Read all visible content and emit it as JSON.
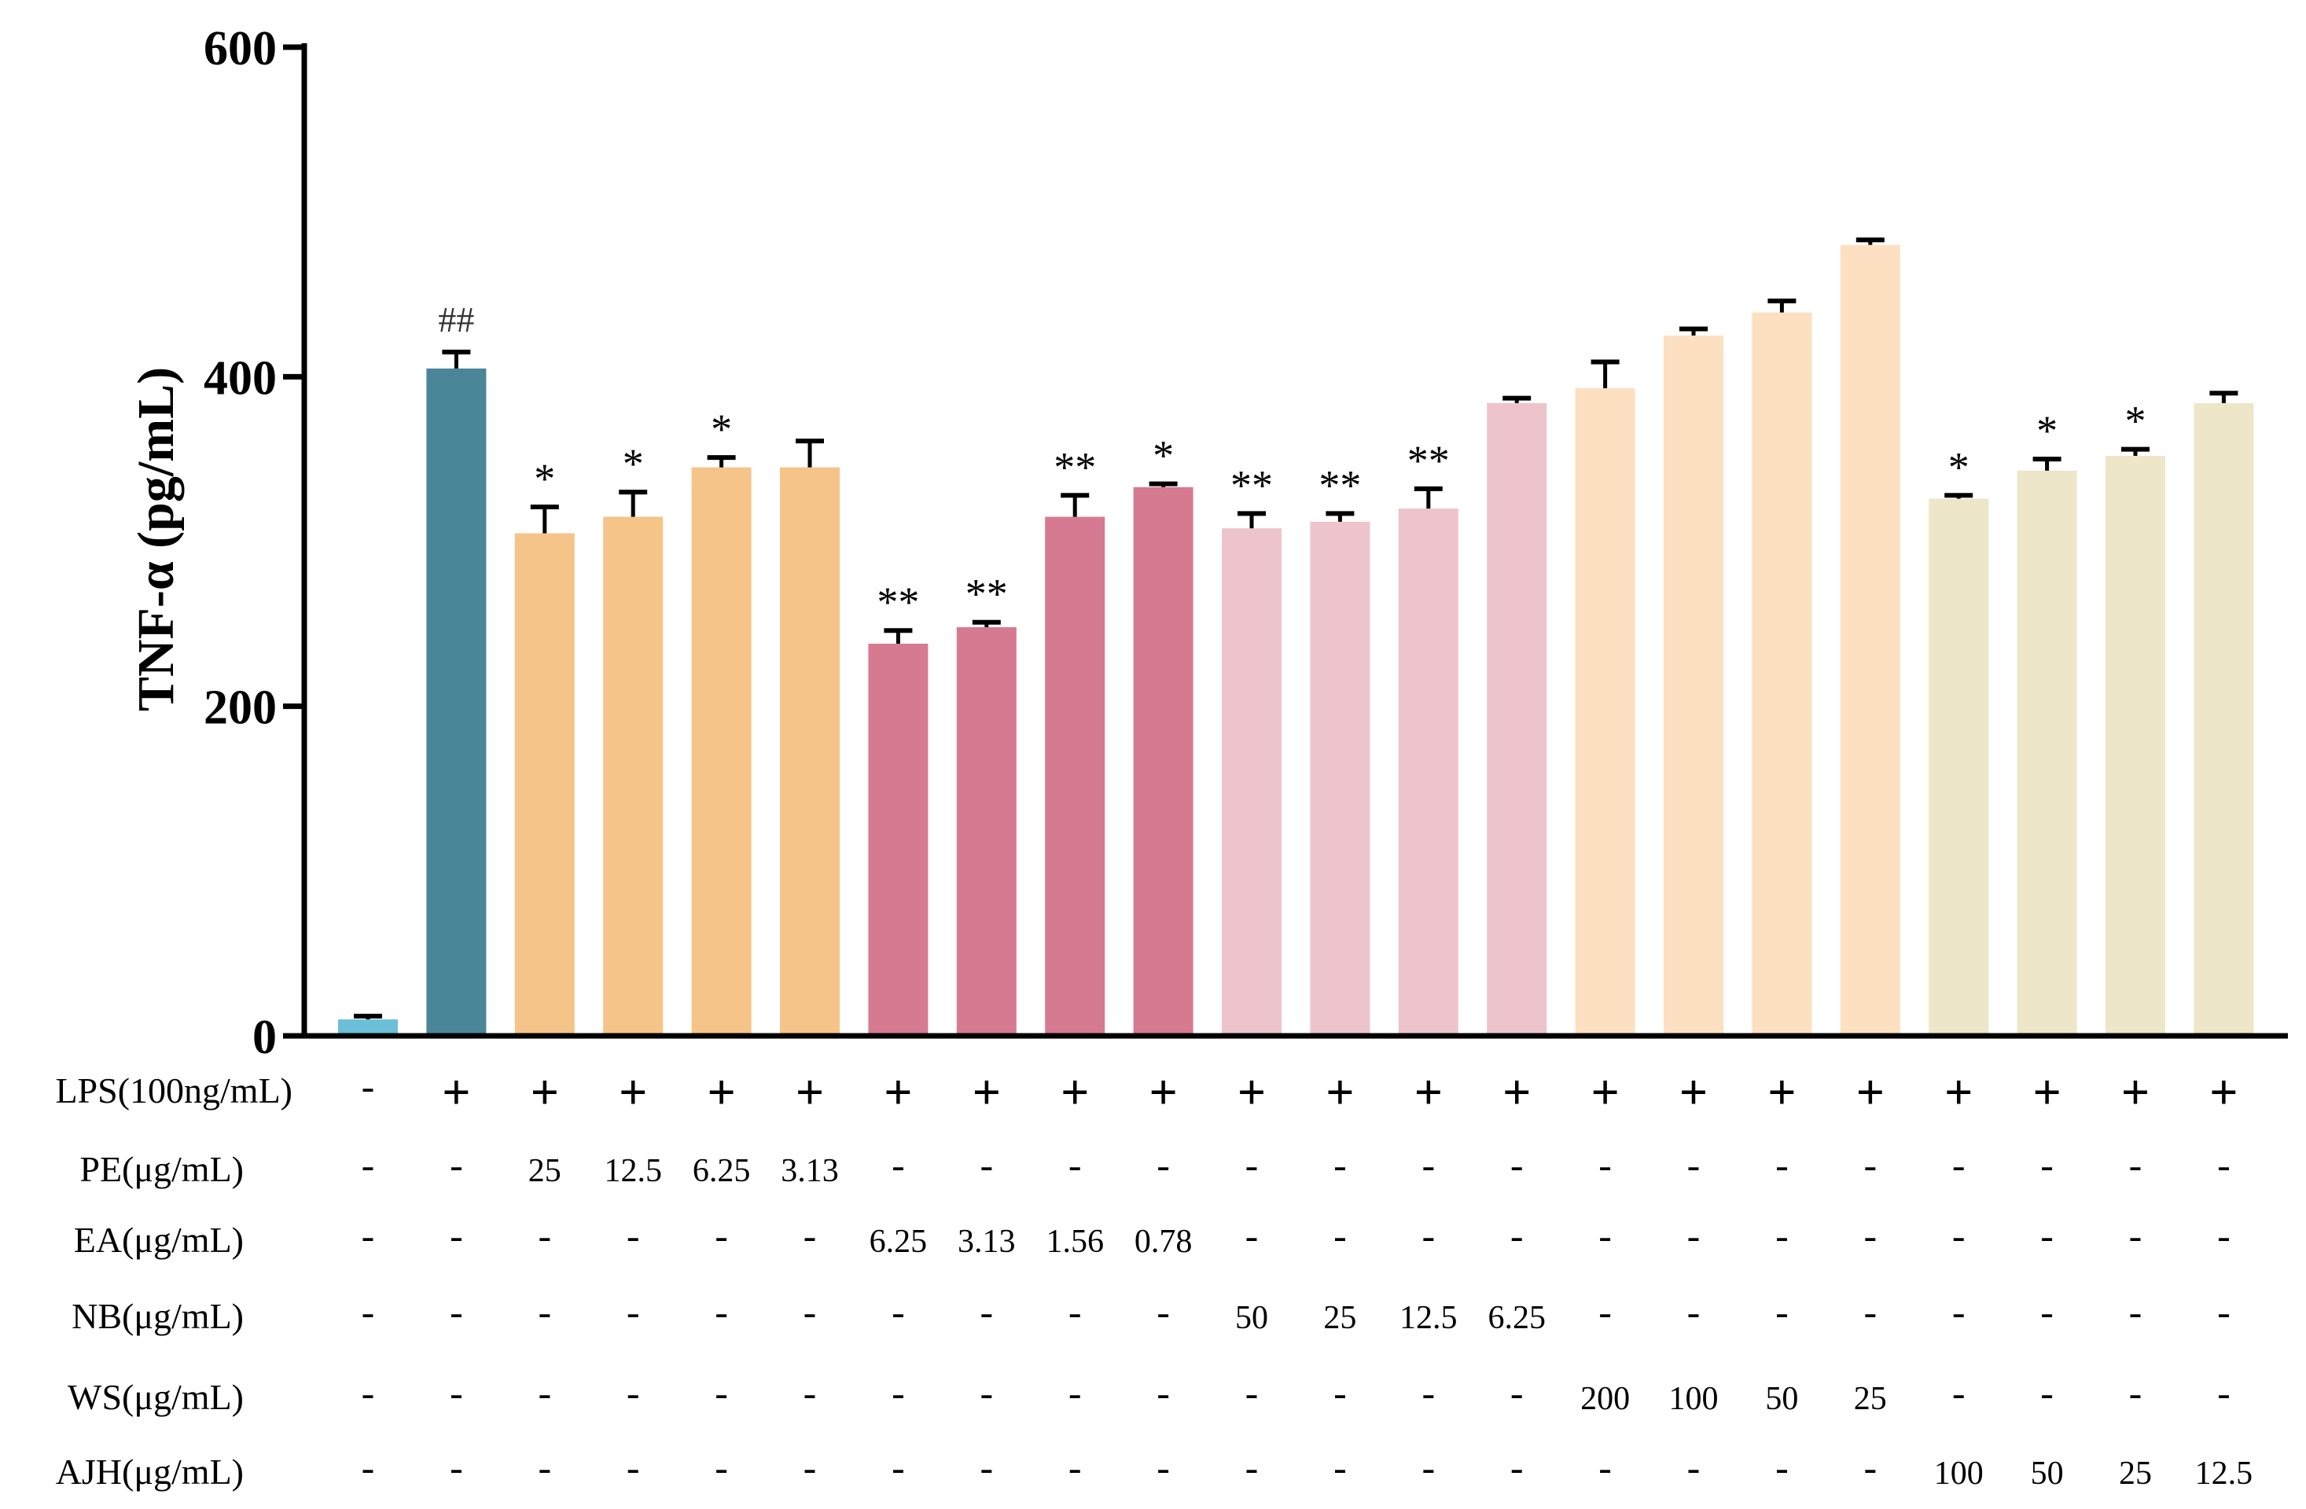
{
  "chart_data": {
    "type": "bar",
    "ylabel": "TNF-α (pg/mL)",
    "xlabel": "",
    "title": "",
    "ylim": [
      0,
      600
    ],
    "yticks": [
      "0",
      "200",
      "400",
      "600"
    ],
    "grid": false,
    "legend": "none",
    "values": [
      10,
      405,
      305,
      315,
      345,
      345,
      238,
      248,
      315,
      333,
      308,
      312,
      320,
      384,
      393,
      425,
      439,
      480,
      326,
      343,
      352,
      384
    ],
    "errors": [
      2,
      10,
      16,
      15,
      6,
      16,
      8,
      3,
      13,
      2,
      9,
      5,
      12,
      3,
      16,
      4,
      7,
      3,
      2,
      7,
      4,
      6
    ],
    "colors": [
      "#6bbfd6",
      "#4a8698",
      "#f5c488",
      "#f5c488",
      "#f5c488",
      "#f5c488",
      "#d67a92",
      "#d67a92",
      "#d67a92",
      "#d67a92",
      "#eec4cc",
      "#eec4cc",
      "#eec4cc",
      "#eec4cc",
      "#fde0c2",
      "#fde0c2",
      "#fde0c2",
      "#fde0c2",
      "#ede6c8",
      "#ede6c8",
      "#ede6c8",
      "#ede6c8"
    ],
    "significance": [
      "",
      "##",
      "*",
      "*",
      "*",
      "",
      "**",
      "**",
      "**",
      "*",
      "**",
      "**",
      "**",
      "",
      "",
      "",
      "",
      "",
      "*",
      "*",
      "*",
      ""
    ],
    "treatment_rows": [
      {
        "label": "LPS(100ng/mL)",
        "values": [
          "-",
          "+",
          "+",
          "+",
          "+",
          "+",
          "+",
          "+",
          "+",
          "+",
          "+",
          "+",
          "+",
          "+",
          "+",
          "+",
          "+",
          "+",
          "+",
          "+",
          "+",
          "+"
        ]
      },
      {
        "label": "PE(μg/mL)",
        "values": [
          "-",
          "-",
          "25",
          "12.5",
          "6.25",
          "3.13",
          "-",
          "-",
          "-",
          "-",
          "-",
          "-",
          "-",
          "-",
          "-",
          "-",
          "-",
          "-",
          "-",
          "-",
          "-",
          "-"
        ]
      },
      {
        "label": "EA(μg/mL)",
        "values": [
          "-",
          "-",
          "-",
          "-",
          "-",
          "-",
          "6.25",
          "3.13",
          "1.56",
          "0.78",
          "-",
          "-",
          "-",
          "-",
          "-",
          "-",
          "-",
          "-",
          "-",
          "-",
          "-",
          "-"
        ]
      },
      {
        "label": "NB(μg/mL)",
        "values": [
          "-",
          "-",
          "-",
          "-",
          "-",
          "-",
          "-",
          "-",
          "-",
          "-",
          "50",
          "25",
          "12.5",
          "6.25",
          "-",
          "-",
          "-",
          "-",
          "-",
          "-",
          "-",
          "-"
        ]
      },
      {
        "label": "WS(μg/mL)",
        "values": [
          "-",
          "-",
          "-",
          "-",
          "-",
          "-",
          "-",
          "-",
          "-",
          "-",
          "-",
          "-",
          "-",
          "-",
          "200",
          "100",
          "50",
          "25",
          "-",
          "-",
          "-",
          "-"
        ]
      },
      {
        "label": "AJH(μg/mL)",
        "values": [
          "-",
          "-",
          "-",
          "-",
          "-",
          "-",
          "-",
          "-",
          "-",
          "-",
          "-",
          "-",
          "-",
          "-",
          "-",
          "-",
          "-",
          "-",
          "100",
          "50",
          "25",
          "12.5"
        ]
      }
    ]
  }
}
